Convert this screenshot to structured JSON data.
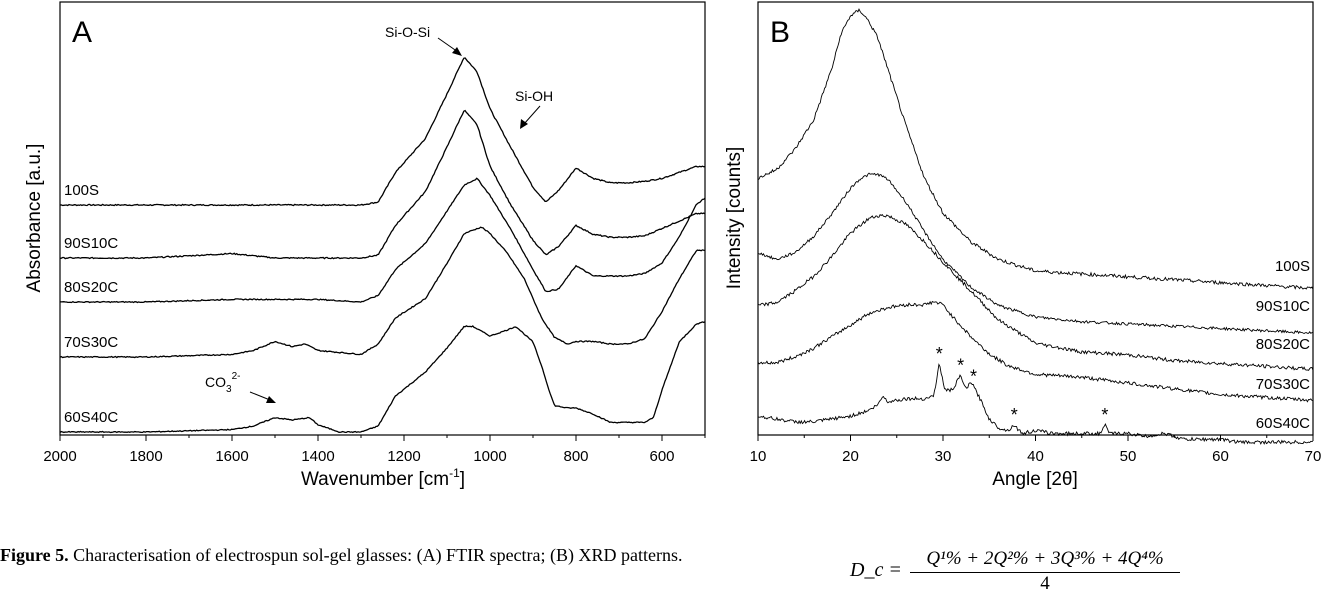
{
  "chart_data": [
    {
      "panel": "A",
      "type": "line",
      "xlabel": "Wavenumber [cm",
      "xlabel_sup": "-1",
      "xlabel_end": "]",
      "ylabel": "Absorbance [a.u.]",
      "x_reversed": true,
      "xlim": [
        2000,
        500
      ],
      "xticks": [
        2000,
        1800,
        1600,
        1400,
        1200,
        1000,
        800,
        600
      ],
      "series": [
        {
          "name": "100S",
          "x": [
            2000,
            1800,
            1600,
            1500,
            1400,
            1300,
            1260,
            1220,
            1150,
            1100,
            1060,
            1030,
            1000,
            950,
            900,
            870,
            840,
            800,
            760,
            720,
            680,
            640,
            600,
            560,
            520,
            500
          ],
          "y": [
            0.0,
            0.0,
            0.0,
            0.0,
            0.0,
            0.0,
            0.02,
            0.22,
            0.45,
            0.75,
            1.0,
            0.9,
            0.65,
            0.38,
            0.12,
            0.02,
            0.1,
            0.25,
            0.18,
            0.15,
            0.15,
            0.16,
            0.18,
            0.22,
            0.26,
            0.26
          ]
        },
        {
          "name": "90S10C",
          "x": [
            2000,
            1800,
            1600,
            1500,
            1400,
            1300,
            1260,
            1220,
            1150,
            1100,
            1060,
            1030,
            1000,
            950,
            900,
            870,
            840,
            800,
            760,
            720,
            680,
            640,
            600,
            560,
            520,
            500
          ],
          "y": [
            0.0,
            0.0,
            0.03,
            0.0,
            0.0,
            0.0,
            0.02,
            0.22,
            0.45,
            0.75,
            1.0,
            0.9,
            0.62,
            0.35,
            0.12,
            0.02,
            0.08,
            0.22,
            0.16,
            0.14,
            0.14,
            0.15,
            0.2,
            0.25,
            0.3,
            0.3
          ]
        },
        {
          "name": "80S20C",
          "x": [
            2000,
            1800,
            1600,
            1500,
            1400,
            1300,
            1260,
            1220,
            1150,
            1100,
            1060,
            1030,
            1000,
            950,
            900,
            870,
            840,
            800,
            760,
            720,
            680,
            640,
            600,
            560,
            520,
            500
          ],
          "y": [
            0.0,
            0.0,
            0.02,
            0.02,
            0.02,
            0.0,
            0.05,
            0.25,
            0.45,
            0.7,
            0.9,
            0.95,
            0.82,
            0.55,
            0.25,
            0.08,
            0.1,
            0.28,
            0.2,
            0.2,
            0.2,
            0.22,
            0.3,
            0.5,
            0.75,
            0.8
          ]
        },
        {
          "name": "70S30C",
          "x": [
            2000,
            1800,
            1600,
            1550,
            1500,
            1460,
            1430,
            1400,
            1300,
            1260,
            1220,
            1150,
            1100,
            1060,
            1020,
            1000,
            960,
            920,
            880,
            850,
            820,
            800,
            760,
            720,
            680,
            640,
            600,
            560,
            520,
            500
          ],
          "y": [
            0.0,
            0.0,
            0.02,
            0.05,
            0.12,
            0.08,
            0.1,
            0.05,
            0.02,
            0.1,
            0.3,
            0.45,
            0.72,
            0.95,
            1.0,
            0.95,
            0.8,
            0.6,
            0.3,
            0.15,
            0.1,
            0.12,
            0.12,
            0.1,
            0.1,
            0.14,
            0.35,
            0.6,
            0.82,
            0.82
          ]
        },
        {
          "name": "60S40C",
          "x": [
            2000,
            1800,
            1600,
            1550,
            1500,
            1460,
            1420,
            1400,
            1350,
            1300,
            1260,
            1220,
            1150,
            1100,
            1060,
            1040,
            1000,
            960,
            940,
            900,
            880,
            860,
            850,
            820,
            800,
            760,
            720,
            680,
            640,
            620,
            600,
            560,
            520,
            500
          ],
          "y": [
            0.0,
            0.0,
            0.02,
            0.05,
            0.12,
            0.1,
            0.12,
            0.06,
            0.0,
            0.0,
            0.05,
            0.3,
            0.5,
            0.7,
            0.88,
            0.88,
            0.8,
            0.85,
            0.88,
            0.75,
            0.55,
            0.32,
            0.22,
            0.2,
            0.2,
            0.15,
            0.08,
            0.08,
            0.08,
            0.12,
            0.35,
            0.75,
            0.9,
            0.92
          ]
        }
      ],
      "annotations": [
        {
          "text": "Si-O-Si"
        },
        {
          "text": "Si-OH"
        },
        {
          "text": "CO",
          "sub": "3",
          "sup": "2-"
        }
      ]
    },
    {
      "panel": "B",
      "type": "line",
      "xlabel": "Angle [2θ]",
      "ylabel": "Intensity [counts]",
      "xlim": [
        10,
        70
      ],
      "xticks": [
        10,
        20,
        30,
        40,
        50,
        60,
        70
      ],
      "series": [
        {
          "name": "100S",
          "x": [
            10,
            12,
            14,
            16,
            18,
            19,
            20,
            21,
            22,
            23,
            24,
            26,
            28,
            30,
            33,
            36,
            40,
            45,
            50,
            55,
            60,
            65,
            70
          ],
          "y": [
            0.42,
            0.45,
            0.52,
            0.62,
            0.8,
            0.92,
            0.98,
            1.0,
            0.96,
            0.9,
            0.8,
            0.6,
            0.42,
            0.3,
            0.2,
            0.14,
            0.1,
            0.09,
            0.08,
            0.07,
            0.06,
            0.05,
            0.04
          ]
        },
        {
          "name": "90S10C",
          "x": [
            10,
            12,
            14,
            16,
            18,
            20,
            21,
            22,
            23,
            24,
            26,
            28,
            30,
            33,
            36,
            40,
            45,
            50,
            55,
            60,
            65,
            70
          ],
          "y": [
            0.38,
            0.35,
            0.38,
            0.45,
            0.55,
            0.66,
            0.7,
            0.72,
            0.72,
            0.7,
            0.6,
            0.47,
            0.35,
            0.23,
            0.15,
            0.1,
            0.08,
            0.07,
            0.06,
            0.05,
            0.04,
            0.03
          ]
        },
        {
          "name": "80S20C",
          "x": [
            10,
            12,
            14,
            16,
            18,
            20,
            22,
            23,
            24,
            26,
            28,
            30,
            33,
            36,
            40,
            45,
            50,
            55,
            60,
            65,
            70
          ],
          "y": [
            0.25,
            0.26,
            0.3,
            0.35,
            0.42,
            0.5,
            0.55,
            0.56,
            0.56,
            0.53,
            0.47,
            0.4,
            0.3,
            0.2,
            0.12,
            0.09,
            0.08,
            0.06,
            0.05,
            0.04,
            0.03
          ]
        },
        {
          "name": "70S30C",
          "x": [
            10,
            12,
            14,
            16,
            18,
            20,
            22,
            24,
            26,
            28,
            29,
            30,
            31,
            33,
            35,
            37,
            40,
            45,
            50,
            55,
            60,
            65,
            70
          ],
          "y": [
            0.17,
            0.17,
            0.19,
            0.22,
            0.26,
            0.3,
            0.34,
            0.36,
            0.37,
            0.37,
            0.38,
            0.37,
            0.33,
            0.26,
            0.2,
            0.16,
            0.13,
            0.12,
            0.1,
            0.08,
            0.06,
            0.05,
            0.04
          ]
        },
        {
          "name": "60S40C",
          "x": [
            10,
            12,
            14,
            16,
            18,
            20,
            22,
            23,
            23.5,
            24,
            26,
            28,
            29,
            29.6,
            30.2,
            31,
            31.9,
            32.5,
            33,
            33.5,
            34,
            35,
            36,
            37,
            37.7,
            38.5,
            40,
            42,
            44,
            46,
            47,
            47.5,
            48,
            50,
            52,
            54,
            56,
            58,
            60,
            62,
            65,
            70
          ],
          "y": [
            0.11,
            0.1,
            0.09,
            0.09,
            0.1,
            0.11,
            0.13,
            0.15,
            0.18,
            0.16,
            0.17,
            0.17,
            0.18,
            0.29,
            0.2,
            0.2,
            0.25,
            0.2,
            0.23,
            0.2,
            0.17,
            0.1,
            0.07,
            0.06,
            0.08,
            0.05,
            0.06,
            0.05,
            0.05,
            0.05,
            0.05,
            0.08,
            0.05,
            0.05,
            0.04,
            0.05,
            0.03,
            0.03,
            0.03,
            0.02,
            0.02,
            0.02
          ]
        }
      ],
      "peak_markers": [
        29.6,
        31.9,
        33.3,
        37.7,
        47.5
      ],
      "peak_marker_symbol": "*"
    }
  ],
  "panels": {
    "a": {
      "letter": "A"
    },
    "b": {
      "letter": "B"
    }
  },
  "caption": {
    "bold": "Figure 5.",
    "text": " Characterisation of electrospun sol-gel glasses: (A) FTIR spectra; (B) XRD patterns."
  },
  "formula": {
    "lhs": "D_c =",
    "numerator": "Q¹% + 2Q²% +  3Q³% + 4Q⁴%",
    "denominator": "4"
  }
}
